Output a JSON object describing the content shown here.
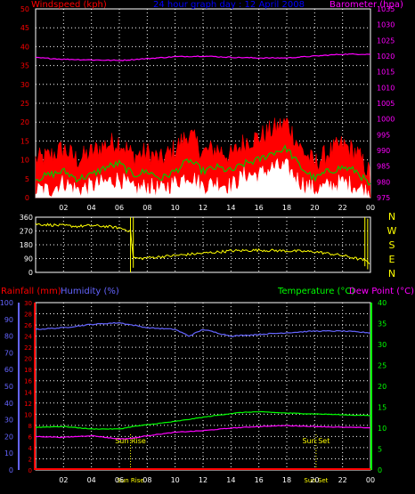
{
  "colors": {
    "wind_gust": "#ff0000",
    "wind_avg": "#00c800",
    "wind_min": "#ffffff",
    "wind_title": "#ff0000",
    "barometer": "#ff00ff",
    "direction": "#ffff00",
    "humidity": "#6464ff",
    "temperature": "#00ff00",
    "dewpoint": "#ff00ff",
    "rainfall": "#ff0000",
    "title": "#0000ff",
    "grid": "#ffffff",
    "axis_left": "#ff0000",
    "axis_humidity": "#6464ff",
    "axis_right_temp": "#00ff00",
    "axis_right_baro": "#ff00ff",
    "dir_labels": "#ffff00",
    "sun_marker": "#ffff00",
    "x_ticks": "#ffffff"
  },
  "chart_data": [
    {
      "type": "line",
      "title": "24 hour graph day : 12 April 2008",
      "ylabel_left": "Windspeed (kph)",
      "ylabel_right": "Barometer (hpa)",
      "x_ticks": [
        "02",
        "04",
        "06",
        "08",
        "10",
        "12",
        "14",
        "16",
        "18",
        "20",
        "22",
        "00"
      ],
      "y_left_ticks": [
        "0",
        "5",
        "10",
        "15",
        "20",
        "25",
        "30",
        "35",
        "40",
        "45",
        "50"
      ],
      "y_left_lim": [
        0,
        50
      ],
      "y_right_ticks": [
        "975",
        "980",
        "985",
        "990",
        "995",
        "1000",
        "1005",
        "1010",
        "1015",
        "1020",
        "1025",
        "1030",
        "1035"
      ],
      "y_right_lim": [
        975,
        1035
      ],
      "grid": true,
      "series": [
        {
          "name": "Windspeed (kph)",
          "key": "gust",
          "x": [
            0,
            1,
            2,
            3,
            4,
            5,
            6,
            7,
            8,
            9,
            10,
            11,
            12,
            13,
            14,
            15,
            16,
            17,
            18,
            19,
            20,
            21,
            22,
            23,
            24
          ],
          "values": [
            10,
            11,
            13,
            10,
            12,
            14,
            15,
            11,
            12,
            10,
            13,
            17,
            12,
            13,
            11,
            15,
            16,
            18,
            20,
            13,
            9,
            12,
            14,
            12,
            6
          ]
        },
        {
          "key": "average",
          "x": [
            0,
            1,
            2,
            3,
            4,
            5,
            6,
            7,
            8,
            9,
            10,
            11,
            12,
            13,
            14,
            15,
            16,
            17,
            18,
            19,
            20,
            21,
            22,
            23,
            24
          ],
          "values": [
            5,
            6,
            7,
            5,
            6,
            8,
            9,
            6,
            7,
            5,
            7,
            10,
            7,
            8,
            7,
            9,
            10,
            12,
            13,
            8,
            5,
            7,
            8,
            7,
            3
          ]
        },
        {
          "key": "minimum",
          "x": [
            0,
            1,
            2,
            3,
            4,
            5,
            6,
            7,
            8,
            9,
            10,
            11,
            12,
            13,
            14,
            15,
            16,
            17,
            18,
            19,
            20,
            21,
            22,
            23,
            24
          ],
          "values": [
            2,
            2,
            4,
            2,
            3,
            4,
            5,
            2,
            3,
            2,
            4,
            6,
            3,
            4,
            3,
            6,
            6,
            8,
            8,
            4,
            2,
            3,
            4,
            3,
            1
          ]
        },
        {
          "name": "Barometer (hpa)",
          "key": "barometer",
          "x": [
            0,
            2,
            4,
            6,
            8,
            10,
            12,
            14,
            16,
            18,
            20,
            22,
            24
          ],
          "values": [
            1019.5,
            1019.0,
            1018.8,
            1018.6,
            1019.2,
            1019.8,
            1020.0,
            1019.6,
            1019.4,
            1019.4,
            1020.0,
            1020.6,
            1020.6
          ]
        }
      ]
    },
    {
      "type": "line",
      "xlabel": "",
      "y_ticks": [
        "360",
        "270",
        "180",
        "90",
        "0"
      ],
      "y_lim": [
        0,
        360
      ],
      "dir_labels": [
        "N",
        "W",
        "S",
        "E",
        "N"
      ],
      "x_ticks": [
        "02",
        "04",
        "06",
        "08",
        "10",
        "12",
        "14",
        "16",
        "18",
        "20",
        "22",
        "00"
      ],
      "grid": true,
      "series": [
        {
          "key": "direction",
          "x": [
            0,
            1,
            2,
            3,
            4,
            5,
            6,
            6.8,
            7.0,
            7.5,
            8,
            10,
            12,
            14,
            16,
            18,
            20,
            22,
            23.5,
            24
          ],
          "values": [
            315,
            310,
            305,
            300,
            305,
            300,
            290,
            270,
            95,
            90,
            95,
            110,
            125,
            140,
            145,
            140,
            135,
            110,
            80,
            60
          ]
        }
      ]
    },
    {
      "type": "line",
      "ylabel_left_rain": "Rainfall (mm)",
      "ylabel_left_hum": "Humidity (%)",
      "ylabel_right_temp": "Temperature (°C)",
      "ylabel_right_dew": "Dew Point (°C)",
      "y_hum_ticks": [
        "0",
        "10",
        "20",
        "30",
        "40",
        "50",
        "60",
        "70",
        "80",
        "90",
        "100"
      ],
      "y_rain_ticks": [
        "0",
        "2",
        "4",
        "6",
        "8",
        "10",
        "12",
        "14",
        "16",
        "18",
        "20",
        "22",
        "24",
        "26",
        "28",
        "30"
      ],
      "y_temp_ticks": [
        "0",
        "5",
        "10",
        "15",
        "20",
        "25",
        "30",
        "35",
        "40"
      ],
      "y_temp_lim": [
        0,
        40
      ],
      "x_ticks": [
        "02",
        "04",
        "06",
        "08",
        "10",
        "12",
        "14",
        "16",
        "18",
        "20",
        "22",
        "00"
      ],
      "sunrise_label": "Sun Rise",
      "sunset_label": "Sun Set",
      "sunrise_x": 6.8,
      "sunset_x": 20.1,
      "grid": true,
      "series": [
        {
          "name": "Humidity (%)",
          "key": "humidity",
          "x": [
            0,
            2,
            4,
            6,
            8,
            10,
            11,
            12,
            13,
            14,
            16,
            18,
            20,
            22,
            24
          ],
          "values": [
            84,
            85,
            87,
            88,
            85,
            84,
            80,
            84,
            82,
            80,
            81,
            82,
            83,
            83,
            82
          ]
        },
        {
          "name": "Temperature (°C)",
          "key": "temperature",
          "x": [
            0,
            2,
            4,
            6,
            7,
            8,
            10,
            12,
            14,
            15,
            16,
            18,
            20,
            22,
            24
          ],
          "values": [
            10.2,
            10.4,
            9.8,
            9.8,
            10.4,
            10.8,
            11.6,
            12.6,
            13.5,
            13.8,
            13.9,
            13.6,
            13.4,
            13.2,
            13.0
          ]
        },
        {
          "name": "Dew Point (°C)",
          "key": "dewpoint",
          "x": [
            0,
            2,
            4,
            6,
            7,
            8,
            10,
            12,
            14,
            16,
            18,
            20,
            22,
            24
          ],
          "values": [
            8.0,
            7.8,
            8.2,
            7.4,
            7.6,
            8.2,
            9.0,
            9.4,
            10.0,
            10.4,
            10.6,
            10.4,
            10.2,
            10.1
          ]
        },
        {
          "name": "Rainfall (mm)",
          "key": "rainfall",
          "x": [
            0,
            24
          ],
          "values": [
            0,
            0
          ]
        }
      ]
    }
  ]
}
